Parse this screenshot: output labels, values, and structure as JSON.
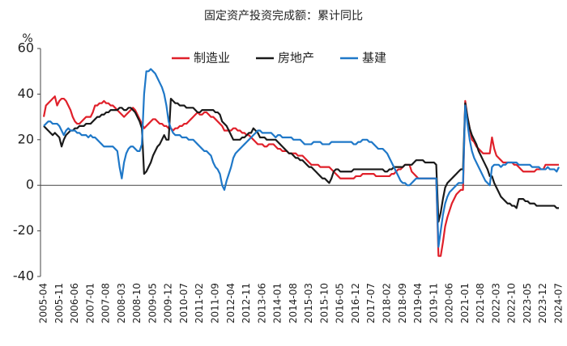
{
  "chart_data": {
    "type": "line",
    "title": "固定资产投资完成额：累计同比",
    "y_unit": "%",
    "categories": [
      "2005-04",
      null,
      null,
      null,
      null,
      null,
      null,
      "2005-11",
      null,
      null,
      null,
      null,
      null,
      null,
      "2006-06",
      null,
      null,
      null,
      null,
      null,
      null,
      "2007-01",
      null,
      null,
      null,
      null,
      null,
      null,
      "2007-08",
      null,
      null,
      null,
      null,
      null,
      null,
      "2008-03",
      null,
      null,
      null,
      null,
      null,
      null,
      "2008-10",
      null,
      null,
      null,
      null,
      null,
      null,
      "2009-05",
      null,
      null,
      null,
      null,
      null,
      null,
      "2009-12",
      null,
      null,
      null,
      null,
      null,
      null,
      "2010-07",
      null,
      null,
      null,
      null,
      null,
      null,
      "2011-02",
      null,
      null,
      null,
      null,
      null,
      null,
      "2011-09",
      null,
      null,
      null,
      null,
      null,
      null,
      "2012-04",
      null,
      null,
      null,
      null,
      null,
      null,
      "2012-11",
      null,
      null,
      null,
      null,
      null,
      null,
      "2013-06",
      null,
      null,
      null,
      null,
      null,
      null,
      "2014-01",
      null,
      null,
      null,
      null,
      null,
      null,
      "2014-08",
      null,
      null,
      null,
      null,
      null,
      null,
      "2015-03",
      null,
      null,
      null,
      null,
      null,
      null,
      "2015-10",
      null,
      null,
      null,
      null,
      null,
      null,
      "2016-05",
      null,
      null,
      null,
      null,
      null,
      null,
      "2016-12",
      null,
      null,
      null,
      null,
      null,
      null,
      "2017-07",
      null,
      null,
      null,
      null,
      null,
      null,
      "2018-02",
      null,
      null,
      null,
      null,
      null,
      null,
      "2018-09",
      null,
      null,
      null,
      null,
      null,
      null,
      "2019-04",
      null,
      null,
      null,
      null,
      null,
      null,
      "2019-11",
      null,
      null,
      null,
      null,
      null,
      null,
      "2020-06",
      null,
      null,
      null,
      null,
      null,
      null,
      "2021-01",
      null,
      null,
      null,
      null,
      null,
      null,
      "2021-08",
      null,
      null,
      null,
      null,
      null,
      null,
      "2022-03",
      null,
      null,
      null,
      null,
      null,
      null,
      "2022-10",
      null,
      null,
      null,
      null,
      null,
      null,
      "2023-05",
      null,
      null,
      null,
      null,
      null,
      null,
      "2023-12",
      null,
      null,
      null,
      null,
      null,
      null,
      "2024-07"
    ],
    "series": [
      {
        "name": "制造业",
        "color": "#e0202a",
        "values": [
          30,
          35,
          36,
          37,
          38,
          39,
          35,
          37,
          38,
          38,
          37,
          35,
          33,
          30,
          28,
          27,
          27,
          28,
          29,
          30,
          30,
          30,
          32,
          35,
          35,
          36,
          36,
          37,
          36,
          36,
          35,
          35,
          34,
          33,
          32,
          31,
          30,
          31,
          32,
          33,
          34,
          33,
          31,
          29,
          27,
          25,
          26,
          27,
          28,
          29,
          29,
          28,
          27,
          27,
          26,
          26,
          25,
          25,
          24,
          25,
          25,
          26,
          26,
          27,
          27,
          28,
          29,
          30,
          31,
          32,
          31,
          31,
          32,
          32,
          31,
          30,
          30,
          29,
          28,
          27,
          26,
          24,
          24,
          24,
          24,
          25,
          25,
          24,
          24,
          23,
          23,
          22,
          22,
          21,
          20,
          19,
          18,
          18,
          18,
          17,
          17,
          18,
          18,
          18,
          17,
          16,
          16,
          15,
          15,
          15,
          14,
          14,
          14,
          14,
          13,
          13,
          13,
          12,
          11,
          10,
          9,
          9,
          9,
          9,
          8,
          8,
          8,
          8,
          8,
          7,
          6,
          5,
          4,
          3,
          3,
          3,
          3,
          3,
          3,
          3,
          4,
          4,
          4,
          5,
          5,
          5,
          5,
          5,
          5,
          4,
          4,
          4,
          4,
          4,
          4,
          4,
          5,
          5,
          6,
          7,
          7,
          8,
          9,
          9,
          9,
          6,
          5,
          4,
          3,
          3,
          3,
          3,
          3,
          3,
          3,
          3,
          3,
          -31,
          -31,
          -25,
          -18,
          -14,
          -11,
          -8,
          -6,
          -4,
          -3,
          -2,
          -2,
          37,
          30,
          25,
          20,
          19,
          17,
          16,
          15,
          14,
          14,
          14,
          14,
          21,
          16,
          13,
          12,
          11,
          10,
          10,
          10,
          10,
          10,
          9,
          9,
          8,
          7,
          6,
          6,
          6,
          6,
          6,
          6,
          7,
          7,
          7,
          7,
          9,
          9,
          9,
          9,
          9,
          9,
          9
        ]
      },
      {
        "name": "房地产",
        "color": "#1a1a1a",
        "values": [
          26,
          25,
          24,
          23,
          22,
          23,
          22,
          21,
          17,
          20,
          22,
          23,
          24,
          24,
          25,
          25,
          26,
          26,
          26,
          27,
          27,
          27,
          28,
          29,
          30,
          30,
          31,
          31,
          32,
          32,
          33,
          33,
          33,
          33,
          34,
          34,
          33,
          33,
          34,
          34,
          33,
          32,
          30,
          28,
          25,
          5,
          6,
          8,
          10,
          13,
          15,
          17,
          18,
          20,
          22,
          20,
          20,
          38,
          37,
          36,
          36,
          35,
          35,
          35,
          34,
          34,
          34,
          34,
          33,
          32,
          32,
          33,
          33,
          33,
          33,
          33,
          33,
          32,
          32,
          31,
          28,
          27,
          26,
          24,
          22,
          20,
          20,
          20,
          20,
          21,
          21,
          22,
          23,
          23,
          25,
          24,
          23,
          21,
          21,
          21,
          20,
          20,
          20,
          20,
          20,
          19,
          18,
          17,
          16,
          15,
          14,
          14,
          13,
          12,
          12,
          11,
          11,
          10,
          9,
          8,
          8,
          7,
          6,
          5,
          4,
          3,
          3,
          2,
          1,
          3,
          6,
          7,
          7,
          6,
          6,
          6,
          6,
          6,
          6,
          7,
          7,
          7,
          7,
          7,
          7,
          7,
          7,
          7,
          7,
          7,
          7,
          7,
          7,
          6,
          6,
          7,
          7,
          8,
          8,
          8,
          8,
          8,
          9,
          9,
          9,
          9,
          10,
          11,
          11,
          11,
          11,
          10,
          10,
          10,
          10,
          10,
          9,
          -16,
          -12,
          -6,
          -1,
          1,
          2,
          3,
          4,
          5,
          6,
          7,
          7,
          36,
          30,
          25,
          22,
          20,
          18,
          15,
          13,
          11,
          9,
          7,
          4,
          4,
          1,
          -1,
          -3,
          -5,
          -6,
          -7,
          -8,
          -8,
          -9,
          -9,
          -10,
          -6,
          -6,
          -6,
          -7,
          -7,
          -8,
          -8,
          -8,
          -9,
          -9,
          -9,
          -9,
          -9,
          -9,
          -9,
          -9,
          -9,
          -10,
          -10
        ]
      },
      {
        "name": "基建",
        "color": "#1f78c8",
        "values": [
          26,
          27,
          28,
          28,
          27,
          27,
          27,
          26,
          24,
          22,
          24,
          25,
          24,
          24,
          24,
          23,
          23,
          22,
          22,
          22,
          21,
          22,
          21,
          21,
          20,
          19,
          18,
          17,
          17,
          17,
          17,
          17,
          16,
          15,
          8,
          3,
          10,
          14,
          16,
          17,
          17,
          16,
          15,
          15,
          18,
          40,
          50,
          50,
          51,
          50,
          49,
          47,
          45,
          43,
          40,
          35,
          28,
          25,
          23,
          22,
          22,
          22,
          21,
          21,
          21,
          20,
          20,
          20,
          19,
          18,
          17,
          16,
          15,
          15,
          14,
          13,
          10,
          8,
          7,
          5,
          0,
          -2,
          2,
          5,
          8,
          12,
          14,
          15,
          16,
          17,
          18,
          19,
          20,
          21,
          22,
          23,
          24,
          24,
          23,
          23,
          23,
          23,
          23,
          22,
          21,
          22,
          22,
          21,
          21,
          21,
          21,
          21,
          20,
          20,
          20,
          20,
          19,
          18,
          18,
          18,
          18,
          19,
          19,
          19,
          19,
          18,
          18,
          18,
          18,
          19,
          19,
          19,
          19,
          19,
          19,
          19,
          19,
          19,
          19,
          18,
          18,
          19,
          19,
          20,
          20,
          20,
          19,
          19,
          18,
          17,
          16,
          16,
          16,
          15,
          14,
          12,
          10,
          8,
          6,
          4,
          2,
          1,
          1,
          0,
          0,
          1,
          2,
          3,
          3,
          3,
          3,
          3,
          3,
          3,
          3,
          3,
          3,
          -27,
          -20,
          -13,
          -8,
          -5,
          -3,
          -2,
          -1,
          0,
          1,
          1,
          1,
          35,
          27,
          20,
          15,
          12,
          10,
          8,
          6,
          4,
          2,
          1,
          0,
          8,
          9,
          9,
          9,
          8,
          9,
          9,
          10,
          10,
          10,
          10,
          10,
          9,
          9,
          9,
          9,
          9,
          9,
          8,
          8,
          8,
          8,
          7,
          7,
          7,
          8,
          7,
          7,
          7,
          6,
          8
        ]
      }
    ],
    "ylim": [
      -40,
      60
    ],
    "yticks": [
      -40,
      -20,
      0,
      20,
      40,
      60
    ],
    "grid": false,
    "legend": "top"
  }
}
